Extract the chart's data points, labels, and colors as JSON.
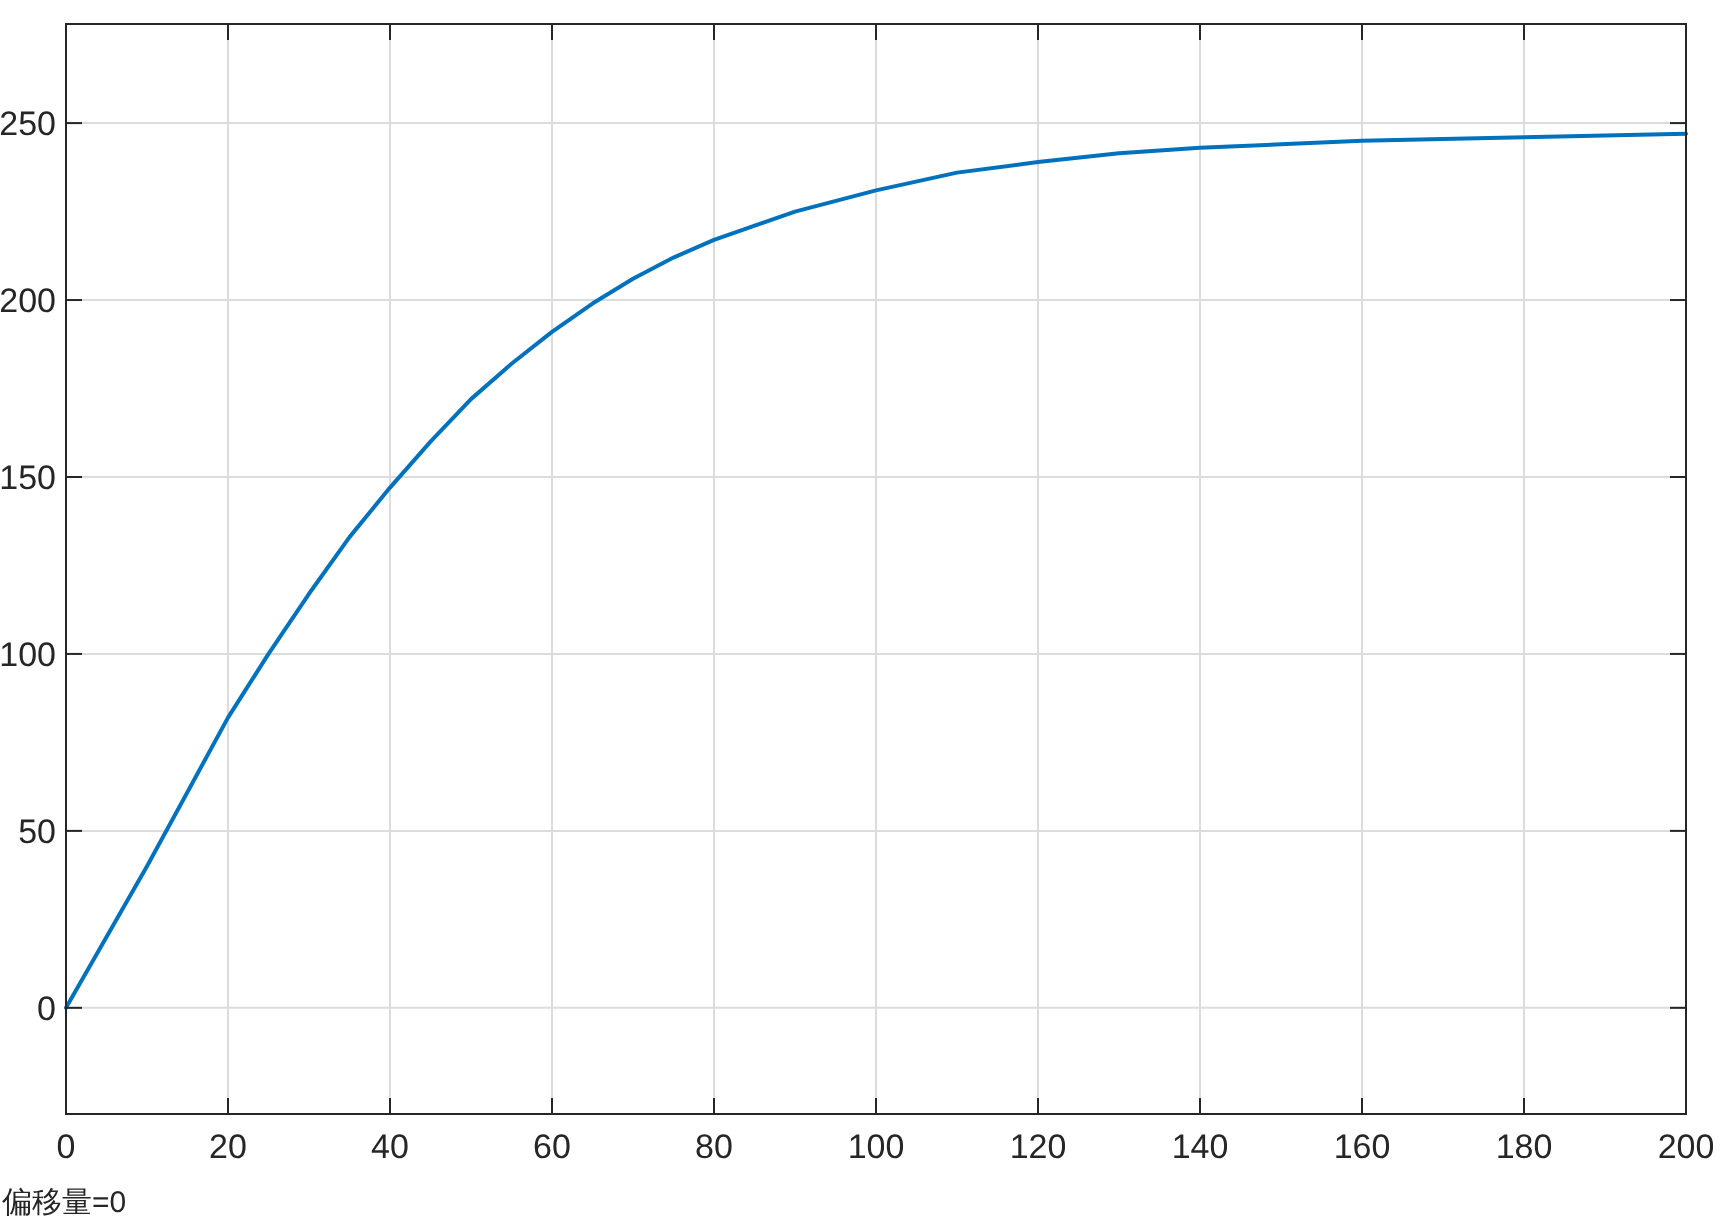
{
  "chart_data": {
    "type": "line",
    "x": [
      0,
      5,
      10,
      15,
      20,
      25,
      30,
      35,
      40,
      45,
      50,
      55,
      60,
      65,
      70,
      75,
      80,
      90,
      100,
      110,
      120,
      130,
      140,
      150,
      160,
      170,
      180,
      190,
      200
    ],
    "series": [
      {
        "color": "#0072bd",
        "values": [
          0,
          20,
          40,
          61,
          82,
          100,
          117,
          133,
          147,
          160,
          172,
          182,
          191,
          199,
          206,
          212,
          217,
          225,
          231,
          236,
          239,
          241.5,
          243,
          244,
          245,
          245.5,
          246,
          246.5,
          247
        ]
      }
    ],
    "xlim": [
      0,
      200
    ],
    "ylim": [
      -30,
      278
    ],
    "xticks": [
      0,
      20,
      40,
      60,
      80,
      100,
      120,
      140,
      160,
      180,
      200
    ],
    "yticks": [
      0,
      50,
      100,
      150,
      200,
      250
    ],
    "grid": true,
    "annotations": [
      "偏移量=0"
    ]
  }
}
